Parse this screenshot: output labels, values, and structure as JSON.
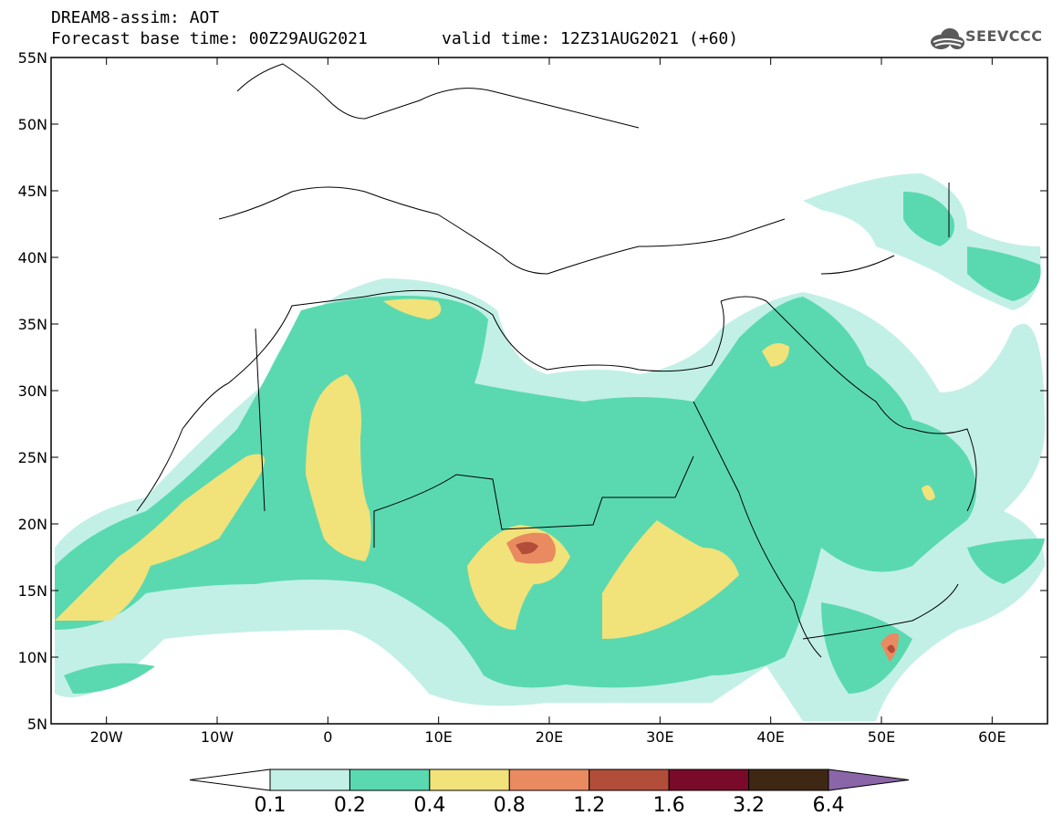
{
  "header": {
    "line1": "DREAM8-assim: AOT",
    "line2": "Forecast base time: 00Z29AUG2021",
    "valid": "valid time: 12Z31AUG2021 (+60)",
    "logo_text": "SEEVCCC"
  },
  "map": {
    "lon_range": [
      -25,
      65
    ],
    "lat_range": [
      5,
      55
    ],
    "lat_ticks": [
      {
        "value": 55,
        "label": "55N"
      },
      {
        "value": 50,
        "label": "50N"
      },
      {
        "value": 45,
        "label": "45N"
      },
      {
        "value": 40,
        "label": "40N"
      },
      {
        "value": 35,
        "label": "35N"
      },
      {
        "value": 30,
        "label": "30N"
      },
      {
        "value": 25,
        "label": "25N"
      },
      {
        "value": 20,
        "label": "20N"
      },
      {
        "value": 15,
        "label": "15N"
      },
      {
        "value": 10,
        "label": "10N"
      },
      {
        "value": 5,
        "label": "5N"
      }
    ],
    "lon_ticks": [
      {
        "value": -20,
        "label": "20W"
      },
      {
        "value": -10,
        "label": "10W"
      },
      {
        "value": 0,
        "label": "0"
      },
      {
        "value": 10,
        "label": "10E"
      },
      {
        "value": 20,
        "label": "20E"
      },
      {
        "value": 30,
        "label": "30E"
      },
      {
        "value": 40,
        "label": "40E"
      },
      {
        "value": 50,
        "label": "50E"
      },
      {
        "value": 60,
        "label": "60E"
      }
    ]
  },
  "colorbar": {
    "levels": [
      "0.1",
      "0.2",
      "0.4",
      "0.8",
      "1.2",
      "1.6",
      "3.2",
      "6.4"
    ],
    "colors": [
      "#ffffff",
      "#c2f0e6",
      "#5ad9b0",
      "#f2e27a",
      "#ea8a60",
      "#b24d3a",
      "#7a0a2a",
      "#3e2814",
      "#8a66a8"
    ]
  }
}
